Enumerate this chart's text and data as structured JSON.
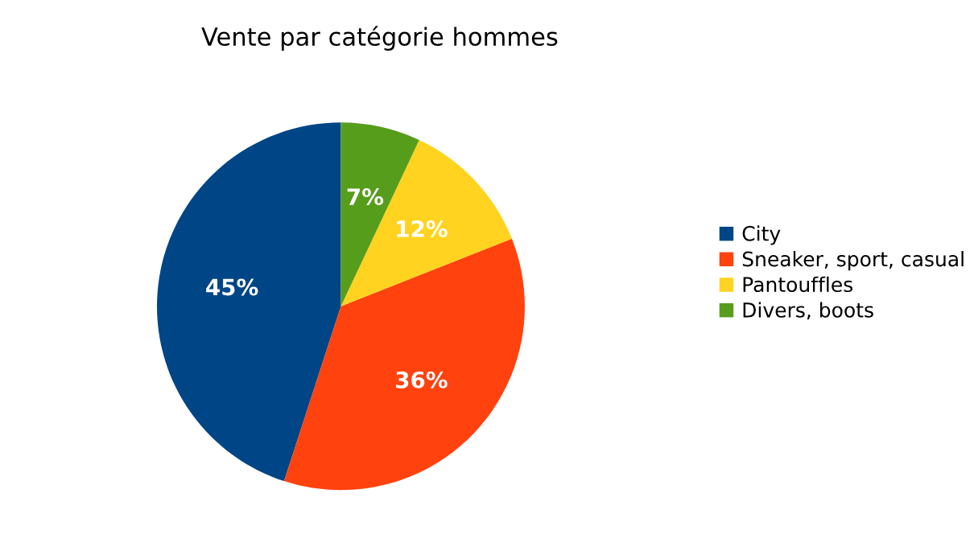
{
  "chart_data": {
    "type": "pie",
    "title": "Vente par catégorie hommes",
    "categories": [
      "City",
      "Sneaker, sport, casual",
      "Pantouffles",
      "Divers, boots"
    ],
    "values": [
      45,
      36,
      12,
      7
    ],
    "value_labels": [
      "45%",
      "36%",
      "12%",
      "7%"
    ],
    "colors": [
      "#004586",
      "#ff420e",
      "#ffd320",
      "#579d1c"
    ],
    "legend": "right"
  }
}
